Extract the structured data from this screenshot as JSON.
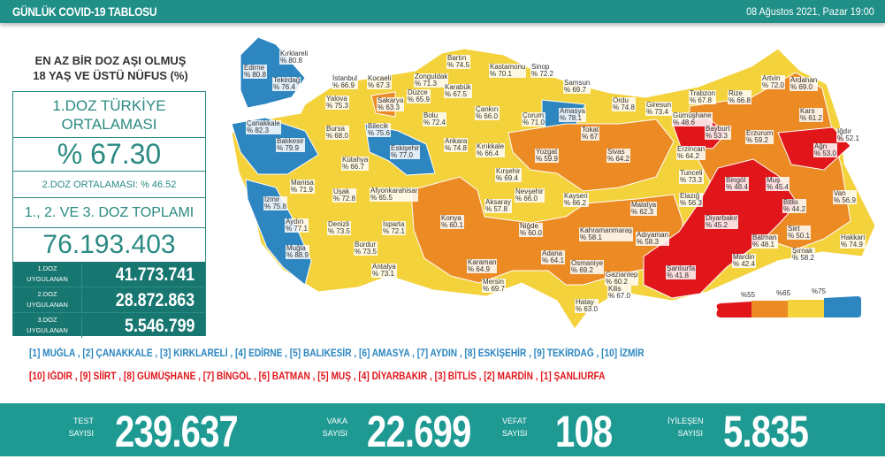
{
  "header": {
    "title": "GÜNLÜK COVID-19 TABLOSU",
    "date": "08 Ağustos 2021, Pazar 19:00"
  },
  "panel": {
    "title_line1": "EN AZ BİR DOZ AŞI OLMUŞ",
    "title_line2": "18 YAŞ VE ÜSTÜ NÜFUS (%)",
    "avg_label_line1": "1.DOZ TÜRKİYE",
    "avg_label_line2": "ORTALAMASI",
    "avg_value": "% 67.30",
    "dose2_avg": "2.DOZ ORTALAMASI: % 46.52",
    "total_label": "1., 2. VE 3. DOZ TOPLAMI",
    "total_value": "76.193.403",
    "doses": [
      {
        "l1": "1.DOZ",
        "l2": "UYGULANAN",
        "value": "41.773.741"
      },
      {
        "l1": "2.DOZ",
        "l2": "UYGULANAN",
        "value": "28.872.863"
      },
      {
        "l1": "3.DOZ",
        "l2": "UYGULANAN",
        "value": "5.546.799"
      }
    ]
  },
  "colors": {
    "teal": "#1f8f88",
    "blue": "#2e86c1",
    "yellow": "#f4d23c",
    "orange": "#ec8a24",
    "red": "#e0161b"
  },
  "legend": {
    "t1": "%55",
    "t2": "%65",
    "t3": "%75"
  },
  "provinces": [
    [
      "Kırklareli",
      "% 80.8"
    ],
    [
      "Edirne",
      "% 80.8"
    ],
    [
      "Tekirdağ",
      "% 76.4"
    ],
    [
      "İstanbul",
      "% 66.9"
    ],
    [
      "Kocaeli",
      "% 67.3"
    ],
    [
      "Zonguldak",
      "% 71.3"
    ],
    [
      "Bartın",
      "% 74.5"
    ],
    [
      "Kastamonu",
      "% 70.1"
    ],
    [
      "Sinop",
      "% 72.2"
    ],
    [
      "Samsun",
      "% 69.7"
    ],
    [
      "Ordu",
      "% 74.8"
    ],
    [
      "Giresun",
      "% 73.4"
    ],
    [
      "Trabzon",
      "% 67.8"
    ],
    [
      "Rize",
      "% 66.8"
    ],
    [
      "Artvin",
      "% 72.0"
    ],
    [
      "Ardahan",
      "% 69.0"
    ],
    [
      "Yalova",
      "% 75.3"
    ],
    [
      "Sakarya",
      "% 63.3"
    ],
    [
      "Düzce",
      "% 65.9"
    ],
    [
      "Karabük",
      "% 67.5"
    ],
    [
      "Bolu",
      "% 72.4"
    ],
    [
      "Çankırı",
      "% 66.0"
    ],
    [
      "Çorum",
      "% 71.0"
    ],
    [
      "Amasya",
      "% 78.1"
    ],
    [
      "Tokat",
      "% 67"
    ],
    [
      "Gümüşhane",
      "% 48.6"
    ],
    [
      "Bayburt",
      "% 53.3"
    ],
    [
      "Kars",
      "% 61.2"
    ],
    [
      "Erzurum",
      "% 59.2"
    ],
    [
      "Iğdır",
      "% 52.1"
    ],
    [
      "Ağrı",
      "% 53.0"
    ],
    [
      "Çanakkale",
      "% 82.3"
    ],
    [
      "Bursa",
      "% 68.0"
    ],
    [
      "Bilecik",
      "% 75.6"
    ],
    [
      "Balıkesir",
      "% 79.9"
    ],
    [
      "Eskişehir",
      "% 77.0"
    ],
    [
      "Kütahya",
      "% 66.7"
    ],
    [
      "Ankara",
      "% 74.8"
    ],
    [
      "Kırıkkale",
      "% 66.4"
    ],
    [
      "Yozgat",
      "% 59.9"
    ],
    [
      "Sivas",
      "% 64.2"
    ],
    [
      "Erzincan",
      "% 64.2"
    ],
    [
      "Tunceli",
      "% 73.3"
    ],
    [
      "Kırşehir",
      "% 69.4"
    ],
    [
      "Manisa",
      "% 71.9"
    ],
    [
      "Uşak",
      "% 72.8"
    ],
    [
      "Afyonkarahisar",
      "% 65.5"
    ],
    [
      "Nevşehir",
      "% 66.0"
    ],
    [
      "Kayseri",
      "% 66.2"
    ],
    [
      "Malatya",
      "% 62.3"
    ],
    [
      "Elazığ",
      "% 56.3"
    ],
    [
      "Bingöl",
      "% 48.4"
    ],
    [
      "Muş",
      "% 45.4"
    ],
    [
      "Van",
      "% 56.9"
    ],
    [
      "Bitlis",
      "% 44.2"
    ],
    [
      "Aksaray",
      "% 57.8"
    ],
    [
      "Konya",
      "% 60.1"
    ],
    [
      "İzmir",
      "% 75.8"
    ],
    [
      "Denizli",
      "% 73.5"
    ],
    [
      "Isparta",
      "% 72.1"
    ],
    [
      "Aydın",
      "% 77.1"
    ],
    [
      "Niğde",
      "% 60.0"
    ],
    [
      "Kahramanmaraş",
      "% 58.1"
    ],
    [
      "Adıyaman",
      "% 58.3"
    ],
    [
      "Diyarbakır",
      "% 45.2"
    ],
    [
      "Batman",
      "% 48.1"
    ],
    [
      "Siirt",
      "% 50.1"
    ],
    [
      "Hakkari",
      "% 74.9"
    ],
    [
      "Burdur",
      "% 73.5"
    ],
    [
      "Muğla",
      "% 88.9"
    ],
    [
      "Adana",
      "% 64.1"
    ],
    [
      "Osmaniye",
      "% 69.2"
    ],
    [
      "Karaman",
      "% 64.9"
    ],
    [
      "Şırnak",
      "% 58.2"
    ],
    [
      "Mardin",
      "% 42.4"
    ],
    [
      "Şanlıurfa",
      "% 41.8"
    ],
    [
      "Antalya",
      "% 73.1"
    ],
    [
      "Gaziantep",
      "% 60.2"
    ],
    [
      "Mersin",
      "% 69.7"
    ],
    [
      "Kilis",
      "% 67.0"
    ],
    [
      "Hatay",
      "% 63.0"
    ]
  ],
  "top10": "[1] MUĞLA , [2] ÇANAKKALE , [3] KIRKLARELİ , [4] EDİRNE , [5] BALIKESİR , [6] AMASYA , [7] AYDIN , [8] ESKİŞEHİR , [9] TEKİRDAĞ , [10] İZMİR",
  "bottom10": "[10] IĞDIR , [9] SİİRT , [8] GÜMÜŞHANE , [7] BİNGÖL , [6] BATMAN , [5] MUŞ , [4] DİYARBAKIR , [3] BİTLİS , [2] MARDİN , [1] ŞANLIURFA",
  "stats": {
    "test_l1": "TEST",
    "test_l2": "SAYISI",
    "test": "239.637",
    "case_l1": "VAKA",
    "case_l2": "SAYISI",
    "case": "22.699",
    "death_l1": "VEFAT",
    "death_l2": "SAYISI",
    "death": "108",
    "rec_l1": "İYİLEŞEN",
    "rec_l2": "SAYISI",
    "rec": "5.835"
  }
}
